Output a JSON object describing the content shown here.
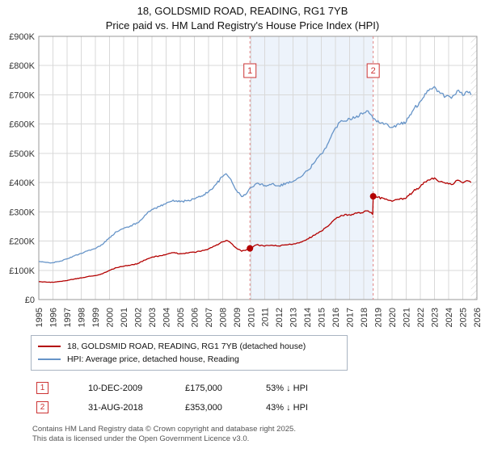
{
  "title": "18, GOLDSMID ROAD, READING, RG1 7YB",
  "subtitle": "Price paid vs. HM Land Registry's House Price Index (HPI)",
  "chart_data": {
    "type": "line",
    "x_range": [
      1995,
      2026
    ],
    "ylim": [
      0,
      900000
    ],
    "grid": true,
    "y_tick_values": [
      0,
      100000,
      200000,
      300000,
      400000,
      500000,
      600000,
      700000,
      800000,
      900000
    ],
    "y_tick_labels": [
      "£0",
      "£100K",
      "£200K",
      "£300K",
      "£400K",
      "£500K",
      "£600K",
      "£700K",
      "£800K",
      "£900K"
    ],
    "x_tick_labels": [
      "1995",
      "1996",
      "1997",
      "1998",
      "1999",
      "2000",
      "2001",
      "2002",
      "2003",
      "2004",
      "2005",
      "2006",
      "2007",
      "2008",
      "2009",
      "2010",
      "2011",
      "2012",
      "2013",
      "2014",
      "2015",
      "2016",
      "2017",
      "2018",
      "2019",
      "2020",
      "2021",
      "2022",
      "2023",
      "2024",
      "2025",
      "2026"
    ],
    "shaded_region": {
      "from": 2009.94,
      "to": 2018.66,
      "color": "#edf3fb"
    },
    "future_hatch_from": 2025.58,
    "dash_color": "#e08585",
    "marker_color": "#cc3333",
    "series": [
      {
        "name": "18, GOLDSMID ROAD, READING, RG1 7YB (detached house)",
        "color": "#b30000",
        "points": [
          [
            1995.0,
            61000
          ],
          [
            1995.5,
            60000
          ],
          [
            1996.0,
            59000
          ],
          [
            1996.5,
            62000
          ],
          [
            1997.0,
            65000
          ],
          [
            1997.5,
            70000
          ],
          [
            1998.0,
            74000
          ],
          [
            1998.5,
            79000
          ],
          [
            1999.0,
            82000
          ],
          [
            1999.5,
            88000
          ],
          [
            2000.0,
            100000
          ],
          [
            2000.5,
            109000
          ],
          [
            2001.0,
            114000
          ],
          [
            2001.5,
            118000
          ],
          [
            2002.0,
            123000
          ],
          [
            2002.5,
            135000
          ],
          [
            2003.0,
            145000
          ],
          [
            2003.5,
            149000
          ],
          [
            2004.0,
            154000
          ],
          [
            2004.5,
            160000
          ],
          [
            2005.0,
            157000
          ],
          [
            2005.5,
            159000
          ],
          [
            2006.0,
            162000
          ],
          [
            2006.5,
            166000
          ],
          [
            2007.0,
            173000
          ],
          [
            2007.5,
            184000
          ],
          [
            2008.0,
            197000
          ],
          [
            2008.25,
            202000
          ],
          [
            2008.6,
            193000
          ],
          [
            2009.0,
            175000
          ],
          [
            2009.35,
            165000
          ],
          [
            2009.7,
            170000
          ],
          [
            2009.94,
            175000
          ],
          [
            2010.4,
            187000
          ],
          [
            2011.0,
            183000
          ],
          [
            2011.5,
            186000
          ],
          [
            2012.0,
            183000
          ],
          [
            2012.5,
            187000
          ],
          [
            2013.0,
            190000
          ],
          [
            2013.5,
            196000
          ],
          [
            2014.0,
            207000
          ],
          [
            2014.5,
            220000
          ],
          [
            2015.0,
            234000
          ],
          [
            2015.5,
            252000
          ],
          [
            2016.0,
            276000
          ],
          [
            2016.4,
            288000
          ],
          [
            2017.0,
            290000
          ],
          [
            2017.5,
            295000
          ],
          [
            2018.0,
            300000
          ],
          [
            2018.3,
            303000
          ],
          [
            2018.63,
            291000
          ],
          [
            2018.66,
            353000
          ],
          [
            2019.0,
            350000
          ],
          [
            2019.5,
            343000
          ],
          [
            2020.0,
            336000
          ],
          [
            2020.5,
            342000
          ],
          [
            2021.0,
            347000
          ],
          [
            2021.5,
            370000
          ],
          [
            2022.0,
            387000
          ],
          [
            2022.5,
            408000
          ],
          [
            2023.0,
            416000
          ],
          [
            2023.4,
            403000
          ],
          [
            2023.8,
            397000
          ],
          [
            2024.2,
            393000
          ],
          [
            2024.6,
            408000
          ],
          [
            2025.0,
            399000
          ],
          [
            2025.3,
            407000
          ],
          [
            2025.58,
            400000
          ]
        ]
      },
      {
        "name": "HPI: Average price, detached house, Reading",
        "color": "#6694c8",
        "points": [
          [
            1995.0,
            130000
          ],
          [
            1995.5,
            127000
          ],
          [
            1996.0,
            126000
          ],
          [
            1996.5,
            131000
          ],
          [
            1997.0,
            139000
          ],
          [
            1997.5,
            149000
          ],
          [
            1998.0,
            158000
          ],
          [
            1998.5,
            168000
          ],
          [
            1999.0,
            174000
          ],
          [
            1999.5,
            188000
          ],
          [
            2000.0,
            212000
          ],
          [
            2000.5,
            232000
          ],
          [
            2001.0,
            243000
          ],
          [
            2001.5,
            252000
          ],
          [
            2002.0,
            262000
          ],
          [
            2002.5,
            288000
          ],
          [
            2003.0,
            308000
          ],
          [
            2003.5,
            318000
          ],
          [
            2004.0,
            328000
          ],
          [
            2004.5,
            340000
          ],
          [
            2005.0,
            334000
          ],
          [
            2005.5,
            338000
          ],
          [
            2006.0,
            344000
          ],
          [
            2006.5,
            354000
          ],
          [
            2007.0,
            368000
          ],
          [
            2007.5,
            392000
          ],
          [
            2008.0,
            420000
          ],
          [
            2008.25,
            430000
          ],
          [
            2008.6,
            410000
          ],
          [
            2009.0,
            372000
          ],
          [
            2009.35,
            352000
          ],
          [
            2009.7,
            362000
          ],
          [
            2010.0,
            383000
          ],
          [
            2010.4,
            397000
          ],
          [
            2011.0,
            390000
          ],
          [
            2011.5,
            396000
          ],
          [
            2012.0,
            389000
          ],
          [
            2012.5,
            398000
          ],
          [
            2013.0,
            404000
          ],
          [
            2013.5,
            418000
          ],
          [
            2014.0,
            440000
          ],
          [
            2014.5,
            468000
          ],
          [
            2015.0,
            498000
          ],
          [
            2015.5,
            537000
          ],
          [
            2016.0,
            588000
          ],
          [
            2016.4,
            612000
          ],
          [
            2017.0,
            618000
          ],
          [
            2017.5,
            628000
          ],
          [
            2018.0,
            638000
          ],
          [
            2018.3,
            645000
          ],
          [
            2018.66,
            618000
          ],
          [
            2019.0,
            612000
          ],
          [
            2019.5,
            601000
          ],
          [
            2020.0,
            589000
          ],
          [
            2020.5,
            599000
          ],
          [
            2021.0,
            608000
          ],
          [
            2021.5,
            648000
          ],
          [
            2022.0,
            678000
          ],
          [
            2022.5,
            715000
          ],
          [
            2023.0,
            728000
          ],
          [
            2023.4,
            705000
          ],
          [
            2023.8,
            695000
          ],
          [
            2024.2,
            688000
          ],
          [
            2024.6,
            714000
          ],
          [
            2025.0,
            698000
          ],
          [
            2025.3,
            712000
          ],
          [
            2025.58,
            700000
          ]
        ]
      }
    ],
    "sale_markers": [
      {
        "label": "1",
        "x": 2009.94,
        "y": 175000
      },
      {
        "label": "2",
        "x": 2018.66,
        "y": 353000
      }
    ]
  },
  "legend": [
    {
      "label": "18, GOLDSMID ROAD, READING, RG1 7YB (detached house)"
    },
    {
      "label": "HPI: Average price, detached house, Reading"
    }
  ],
  "transactions": [
    {
      "num": "1",
      "date": "10-DEC-2009",
      "price": "£175,000",
      "hpi": "53% ↓ HPI"
    },
    {
      "num": "2",
      "date": "31-AUG-2018",
      "price": "£353,000",
      "hpi": "43% ↓ HPI"
    }
  ],
  "footer": {
    "line1": "Contains HM Land Registry data © Crown copyright and database right 2025.",
    "line2": "This data is licensed under the Open Government Licence v3.0."
  }
}
